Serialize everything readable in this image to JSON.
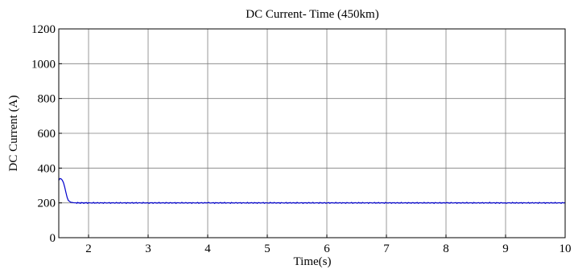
{
  "chart_data": {
    "type": "line",
    "title": "DC Current- Time (450km)",
    "xlabel": "Time(s)",
    "ylabel": "DC Current (A)",
    "xlim": [
      1.5,
      10
    ],
    "ylim": [
      0,
      1200
    ],
    "x_ticks": [
      2,
      3,
      4,
      5,
      6,
      7,
      8,
      9,
      10
    ],
    "y_ticks": [
      0,
      200,
      400,
      600,
      800,
      1000,
      1200
    ],
    "grid": true,
    "series": [
      {
        "color": "#0000cc",
        "x": [
          1.5,
          1.52,
          1.54,
          1.56,
          1.58,
          1.6,
          1.62,
          1.64,
          1.66,
          1.7,
          1.75,
          1.8,
          2,
          3,
          4,
          5,
          6,
          7,
          8,
          9,
          10
        ],
        "y": [
          330,
          340,
          338,
          330,
          315,
          290,
          260,
          232,
          214,
          204,
          201,
          200,
          200,
          200,
          200,
          200,
          200,
          200,
          200,
          200,
          200
        ]
      }
    ]
  }
}
